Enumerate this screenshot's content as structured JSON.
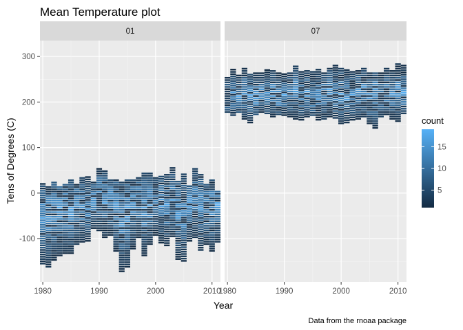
{
  "chart_data": {
    "type": "heatmap",
    "title": "Mean Temperature plot",
    "xlabel": "Year",
    "ylabel": "Tens of Degrees (C)",
    "caption": "Data from the rnoaa package",
    "xlim": [
      1979.5,
      2011.5
    ],
    "ylim": [
      -195,
      335
    ],
    "x_ticks": [
      1980,
      1990,
      2000,
      2010
    ],
    "y_ticks": [
      -100,
      0,
      100,
      200,
      300
    ],
    "panels": [
      {
        "label": "01",
        "year_ranges": [
          [
            1980,
            -158,
            20
          ],
          [
            1981,
            -165,
            15
          ],
          [
            1982,
            -150,
            25
          ],
          [
            1983,
            -140,
            15
          ],
          [
            1984,
            -135,
            20
          ],
          [
            1985,
            -135,
            30
          ],
          [
            1986,
            -115,
            20
          ],
          [
            1987,
            -110,
            35
          ],
          [
            1988,
            -108,
            35
          ],
          [
            1989,
            -80,
            25
          ],
          [
            1990,
            -85,
            52
          ],
          [
            1991,
            -100,
            50
          ],
          [
            1992,
            -95,
            30
          ],
          [
            1993,
            -130,
            30
          ],
          [
            1994,
            -175,
            25
          ],
          [
            1995,
            -165,
            30
          ],
          [
            1996,
            -125,
            30
          ],
          [
            1997,
            -100,
            35
          ],
          [
            1998,
            -140,
            45
          ],
          [
            1999,
            -115,
            45
          ],
          [
            2000,
            -95,
            35
          ],
          [
            2001,
            -112,
            35
          ],
          [
            2002,
            -118,
            40
          ],
          [
            2003,
            -98,
            55
          ],
          [
            2004,
            -148,
            25
          ],
          [
            2005,
            -152,
            40
          ],
          [
            2006,
            -108,
            15
          ],
          [
            2007,
            -100,
            52
          ],
          [
            2008,
            -128,
            40
          ],
          [
            2009,
            -115,
            20
          ],
          [
            2010,
            -130,
            30
          ],
          [
            2011,
            -110,
            5
          ]
        ],
        "peak_ranges": [
          [
            1980,
            -60,
            -40
          ],
          [
            1981,
            -55,
            -35
          ],
          [
            1982,
            -50,
            -30
          ],
          [
            1983,
            -45,
            -25
          ],
          [
            1984,
            -40,
            -20
          ],
          [
            1985,
            -50,
            -30
          ],
          [
            1986,
            -30,
            -10
          ],
          [
            1987,
            -40,
            -20
          ],
          [
            1988,
            -45,
            -25
          ],
          [
            1989,
            -20,
            0
          ],
          [
            1990,
            -15,
            5
          ],
          [
            1991,
            -25,
            -5
          ],
          [
            1992,
            -30,
            -10
          ],
          [
            1993,
            -40,
            -20
          ],
          [
            1994,
            -60,
            -40
          ],
          [
            1995,
            -55,
            -35
          ],
          [
            1996,
            -40,
            -20
          ],
          [
            1997,
            -30,
            -10
          ],
          [
            1998,
            -45,
            -25
          ],
          [
            1999,
            -35,
            -15
          ],
          [
            2000,
            -30,
            -10
          ],
          [
            2001,
            -35,
            -15
          ],
          [
            2002,
            -40,
            -20
          ],
          [
            2003,
            -25,
            -5
          ],
          [
            2004,
            -50,
            -30
          ],
          [
            2005,
            -55,
            -35
          ],
          [
            2006,
            -35,
            -15
          ],
          [
            2007,
            -25,
            -5
          ],
          [
            2008,
            -40,
            -20
          ],
          [
            2009,
            -45,
            -25
          ],
          [
            2010,
            -40,
            -20
          ],
          [
            2011,
            -35,
            -15
          ]
        ]
      },
      {
        "label": "07",
        "year_ranges": [
          [
            1980,
            175,
            255
          ],
          [
            1981,
            168,
            270
          ],
          [
            1982,
            175,
            260
          ],
          [
            1983,
            160,
            272
          ],
          [
            1984,
            152,
            262
          ],
          [
            1985,
            170,
            265
          ],
          [
            1986,
            175,
            262
          ],
          [
            1987,
            172,
            268
          ],
          [
            1988,
            165,
            270
          ],
          [
            1989,
            170,
            262
          ],
          [
            1990,
            168,
            262
          ],
          [
            1991,
            165,
            265
          ],
          [
            1992,
            160,
            280
          ],
          [
            1993,
            158,
            268
          ],
          [
            1994,
            165,
            270
          ],
          [
            1995,
            168,
            268
          ],
          [
            1996,
            158,
            270
          ],
          [
            1997,
            160,
            262
          ],
          [
            1998,
            165,
            275
          ],
          [
            1999,
            162,
            280
          ],
          [
            2000,
            150,
            275
          ],
          [
            2001,
            152,
            272
          ],
          [
            2002,
            158,
            268
          ],
          [
            2003,
            160,
            270
          ],
          [
            2004,
            165,
            272
          ],
          [
            2005,
            150,
            265
          ],
          [
            2006,
            140,
            262
          ],
          [
            2007,
            165,
            262
          ],
          [
            2008,
            170,
            275
          ],
          [
            2009,
            160,
            270
          ],
          [
            2010,
            155,
            282
          ],
          [
            2011,
            172,
            282
          ]
        ],
        "peak_ranges": [
          [
            1980,
            200,
            220
          ],
          [
            1981,
            205,
            225
          ],
          [
            1982,
            200,
            220
          ],
          [
            1983,
            210,
            230
          ],
          [
            1984,
            205,
            225
          ],
          [
            1985,
            200,
            220
          ],
          [
            1986,
            210,
            230
          ],
          [
            1987,
            205,
            225
          ],
          [
            1988,
            210,
            230
          ],
          [
            1989,
            200,
            220
          ],
          [
            1990,
            205,
            225
          ],
          [
            1991,
            210,
            230
          ],
          [
            1992,
            215,
            235
          ],
          [
            1993,
            205,
            225
          ],
          [
            1994,
            210,
            230
          ],
          [
            1995,
            200,
            220
          ],
          [
            1996,
            205,
            225
          ],
          [
            1997,
            210,
            230
          ],
          [
            1998,
            215,
            235
          ],
          [
            1999,
            205,
            225
          ],
          [
            2000,
            210,
            230
          ],
          [
            2001,
            200,
            220
          ],
          [
            2002,
            205,
            225
          ],
          [
            2003,
            210,
            230
          ],
          [
            2004,
            215,
            235
          ],
          [
            2005,
            200,
            220
          ],
          [
            2006,
            205,
            225
          ],
          [
            2007,
            200,
            220
          ],
          [
            2008,
            210,
            230
          ],
          [
            2009,
            205,
            225
          ],
          [
            2010,
            215,
            235
          ],
          [
            2011,
            210,
            230
          ]
        ]
      }
    ],
    "legend": {
      "title": "count",
      "position": "right",
      "min": 1,
      "max": 19,
      "ticks": [
        5,
        10,
        15
      ],
      "color_low": "#132B43",
      "color_high": "#56B1F7"
    },
    "colors": {
      "panel_background": "#EBEBEB",
      "grid": "#FFFFFF",
      "strip_background": "#D9D9D9"
    }
  }
}
